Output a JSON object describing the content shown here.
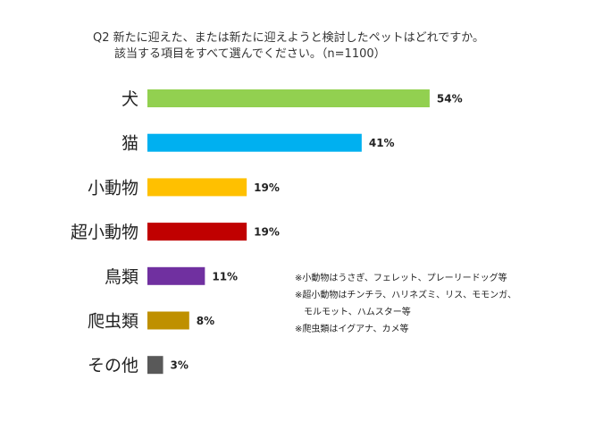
{
  "title": {
    "line1": "Q2 新たに迎えた、または新たに迎えようと検討したペットはどれですか。",
    "line2": "該当する項目をすべて選んでください。（n=1100）"
  },
  "chart_data": {
    "type": "bar",
    "orientation": "horizontal",
    "categories": [
      "犬",
      "猫",
      "小動物",
      "超小動物",
      "鳥類",
      "爬虫類",
      "その他"
    ],
    "values": [
      54,
      41,
      19,
      19,
      11,
      8,
      3
    ],
    "value_labels": [
      "54%",
      "41%",
      "19%",
      "19%",
      "11%",
      "8%",
      "3%"
    ],
    "colors": [
      "#92d050",
      "#00b0f0",
      "#ffc000",
      "#c00000",
      "#7030a0",
      "#bf9000",
      "#595959"
    ],
    "unit": "%",
    "xlim": [
      0,
      100
    ],
    "grid": false
  },
  "notes": [
    "※小動物はうさぎ、フェレット、プレーリードッグ等",
    "※超小動物はチンチラ、ハリネズミ、リス、モモンガ、",
    "モルモット、ハムスター等",
    "※爬虫類はイグアナ、カメ等"
  ]
}
